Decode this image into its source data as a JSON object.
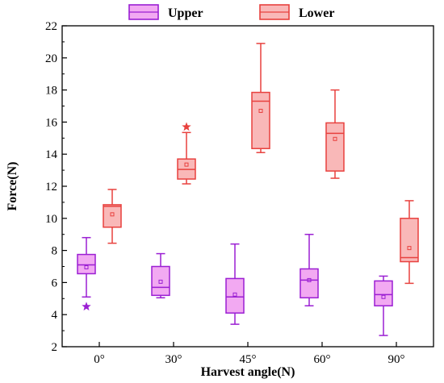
{
  "chart_data": {
    "type": "boxplot",
    "xlabel": "Harvest angle(N)",
    "ylabel": "Force(N)",
    "ylim": [
      2,
      22
    ],
    "yticks": [
      2,
      4,
      6,
      8,
      10,
      12,
      14,
      16,
      18,
      20,
      22
    ],
    "categories": [
      "0°",
      "30°",
      "45°",
      "60°",
      "90°"
    ],
    "legend_position": "top",
    "grid": false,
    "series": [
      {
        "name": "Upper",
        "color": "#9b1fd3",
        "fill": "#f2a9f2",
        "boxes": [
          {
            "min": 5.1,
            "q1": 6.55,
            "median": 7.1,
            "q3": 7.75,
            "max": 8.8,
            "mean": 6.95,
            "outliers": [
              4.5
            ]
          },
          {
            "min": 5.05,
            "q1": 5.2,
            "median": 5.7,
            "q3": 7.0,
            "max": 7.8,
            "mean": 6.05,
            "outliers": []
          },
          {
            "min": 3.4,
            "q1": 4.1,
            "median": 5.1,
            "q3": 6.25,
            "max": 8.4,
            "mean": 5.25,
            "outliers": []
          },
          {
            "min": 4.55,
            "q1": 5.05,
            "median": 6.15,
            "q3": 6.85,
            "max": 9.0,
            "mean": 6.15,
            "outliers": []
          },
          {
            "min": 2.7,
            "q1": 4.55,
            "median": 5.25,
            "q3": 6.1,
            "max": 6.4,
            "mean": 5.1,
            "outliers": []
          }
        ]
      },
      {
        "name": "Lower",
        "color": "#e8413e",
        "fill": "#f9b8b8",
        "boxes": [
          {
            "min": 8.45,
            "q1": 9.45,
            "median": 10.75,
            "q3": 10.85,
            "max": 11.8,
            "mean": 10.25,
            "outliers": []
          },
          {
            "min": 12.15,
            "q1": 12.45,
            "median": 13.05,
            "q3": 13.7,
            "max": 15.35,
            "mean": 13.35,
            "outliers": [
              15.7
            ]
          },
          {
            "min": 14.1,
            "q1": 14.35,
            "median": 17.3,
            "q3": 17.85,
            "max": 20.9,
            "mean": 16.7,
            "outliers": []
          },
          {
            "min": 12.5,
            "q1": 12.95,
            "median": 15.3,
            "q3": 15.95,
            "max": 18.0,
            "mean": 14.95,
            "outliers": []
          },
          {
            "min": 5.95,
            "q1": 7.3,
            "median": 7.55,
            "q3": 10.0,
            "max": 11.1,
            "mean": 8.15,
            "outliers": []
          }
        ]
      }
    ]
  }
}
